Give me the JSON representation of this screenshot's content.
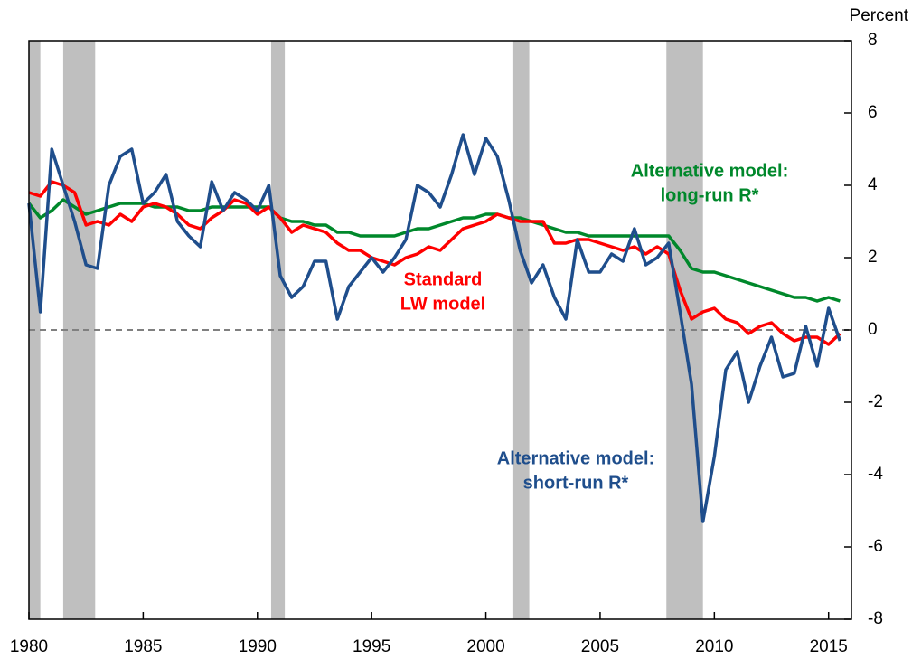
{
  "chart_data": {
    "type": "line",
    "y_axis_label": "Percent",
    "xlim": [
      1980,
      2016
    ],
    "xticks": [
      1980,
      1985,
      1990,
      1995,
      2000,
      2005,
      2010,
      2015
    ],
    "ylim": [
      -8,
      8
    ],
    "yticks": [
      -8,
      -6,
      -4,
      -2,
      0,
      2,
      4,
      6,
      8
    ],
    "reference_line": 0,
    "shaded_periods": [
      [
        1980,
        1980.5
      ],
      [
        1981.5,
        1982.9
      ],
      [
        1990.6,
        1991.2
      ],
      [
        2001.2,
        2001.9
      ],
      [
        2007.9,
        2009.5
      ]
    ],
    "x": [
      1980,
      1980.5,
      1981,
      1981.5,
      1982,
      1982.5,
      1983,
      1983.5,
      1984,
      1984.5,
      1985,
      1985.5,
      1986,
      1986.5,
      1987,
      1987.5,
      1988,
      1988.5,
      1989,
      1989.5,
      1990,
      1990.5,
      1991,
      1991.5,
      1992,
      1992.5,
      1993,
      1993.5,
      1994,
      1994.5,
      1995,
      1995.5,
      1996,
      1996.5,
      1997,
      1997.5,
      1998,
      1998.5,
      1999,
      1999.5,
      2000,
      2000.5,
      2001,
      2001.5,
      2002,
      2002.5,
      2003,
      2003.5,
      2004,
      2004.5,
      2005,
      2005.5,
      2006,
      2006.5,
      2007,
      2007.5,
      2008,
      2008.5,
      2009,
      2009.5,
      2010,
      2010.5,
      2011,
      2011.5,
      2012,
      2012.5,
      2013,
      2013.5,
      2014,
      2014.5,
      2015,
      2015.5
    ],
    "series": [
      {
        "color": "#00882b",
        "values": [
          3.5,
          3.1,
          3.3,
          3.6,
          3.4,
          3.2,
          3.3,
          3.4,
          3.5,
          3.5,
          3.5,
          3.4,
          3.4,
          3.4,
          3.3,
          3.3,
          3.4,
          3.4,
          3.4,
          3.4,
          3.4,
          3.4,
          3.1,
          3.0,
          3.0,
          2.9,
          2.9,
          2.7,
          2.7,
          2.6,
          2.6,
          2.6,
          2.6,
          2.7,
          2.8,
          2.8,
          2.9,
          3.0,
          3.1,
          3.1,
          3.2,
          3.2,
          3.1,
          3.1,
          3.0,
          2.9,
          2.8,
          2.7,
          2.7,
          2.6,
          2.6,
          2.6,
          2.6,
          2.6,
          2.6,
          2.6,
          2.6,
          2.2,
          1.7,
          1.6,
          1.6,
          1.5,
          1.4,
          1.3,
          1.2,
          1.1,
          1.0,
          0.9,
          0.9,
          0.8,
          0.9,
          0.8
        ]
      },
      {
        "color": "#ff0000",
        "values": [
          3.8,
          3.7,
          4.1,
          4.0,
          3.8,
          2.9,
          3.0,
          2.9,
          3.2,
          3.0,
          3.4,
          3.5,
          3.4,
          3.2,
          2.9,
          2.8,
          3.1,
          3.3,
          3.6,
          3.5,
          3.2,
          3.4,
          3.1,
          2.7,
          2.9,
          2.8,
          2.7,
          2.4,
          2.2,
          2.2,
          2.0,
          1.9,
          1.8,
          2.0,
          2.1,
          2.3,
          2.2,
          2.5,
          2.8,
          2.9,
          3.0,
          3.2,
          3.1,
          3.0,
          3.0,
          3.0,
          2.4,
          2.4,
          2.5,
          2.5,
          2.4,
          2.3,
          2.2,
          2.3,
          2.1,
          2.3,
          2.1,
          1.1,
          0.3,
          0.5,
          0.6,
          0.3,
          0.2,
          -0.1,
          0.1,
          0.2,
          -0.1,
          -0.3,
          -0.2,
          -0.2,
          -0.4,
          -0.1
        ]
      },
      {
        "color": "#1f4e8c",
        "values": [
          3.5,
          0.5,
          5.0,
          4.0,
          3.0,
          1.8,
          1.7,
          4.0,
          4.8,
          5.0,
          3.5,
          3.8,
          4.3,
          3.0,
          2.6,
          2.3,
          4.1,
          3.3,
          3.8,
          3.6,
          3.3,
          4.0,
          1.5,
          0.9,
          1.2,
          1.9,
          1.9,
          0.3,
          1.2,
          1.6,
          2.0,
          1.6,
          2.0,
          2.5,
          4.0,
          3.8,
          3.4,
          4.3,
          5.4,
          4.3,
          5.3,
          4.8,
          3.6,
          2.2,
          1.3,
          1.8,
          0.9,
          0.3,
          2.5,
          1.6,
          1.6,
          2.1,
          1.9,
          2.8,
          1.8,
          2.0,
          2.4,
          0.5,
          -1.5,
          -5.3,
          -3.5,
          -1.1,
          -0.6,
          -2.0,
          -1.0,
          -0.2,
          -1.3,
          -1.2,
          0.1,
          -1.0,
          0.6,
          -0.3
        ]
      }
    ],
    "annotations": [
      {
        "color": "#00882b",
        "lines": [
          "Alternative model:",
          "long-run R*"
        ]
      },
      {
        "color": "#ff0000",
        "lines": [
          "Standard",
          "LW model"
        ]
      },
      {
        "color": "#1f4e8c",
        "lines": [
          "Alternative model:",
          "short-run R*"
        ]
      }
    ]
  }
}
